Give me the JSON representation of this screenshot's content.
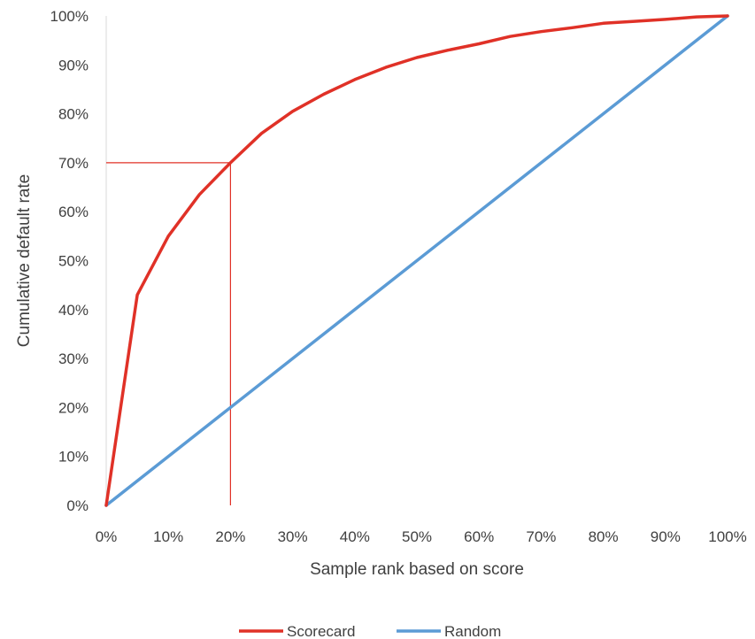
{
  "chart_data": {
    "type": "line",
    "title": "",
    "xlabel": "Sample rank based on score",
    "ylabel": "Cumulative default rate",
    "xlim": [
      0,
      100
    ],
    "ylim": [
      0,
      100
    ],
    "x_ticks": [
      "0%",
      "10%",
      "20%",
      "30%",
      "40%",
      "50%",
      "60%",
      "70%",
      "80%",
      "90%",
      "100%"
    ],
    "y_ticks": [
      "0%",
      "10%",
      "20%",
      "30%",
      "40%",
      "50%",
      "60%",
      "70%",
      "80%",
      "90%",
      "100%"
    ],
    "grid": false,
    "legend_position": "bottom",
    "series": [
      {
        "name": "Scorecard",
        "color": "#e03127",
        "x": [
          0,
          5,
          10,
          15,
          20,
          25,
          30,
          35,
          40,
          45,
          50,
          55,
          60,
          65,
          70,
          75,
          80,
          85,
          90,
          95,
          100
        ],
        "y": [
          0,
          43,
          55,
          63.5,
          70,
          76,
          80.5,
          84,
          87,
          89.5,
          91.5,
          93,
          94.3,
          95.8,
          96.8,
          97.6,
          98.5,
          98.9,
          99.3,
          99.8,
          100
        ]
      },
      {
        "name": "Random",
        "color": "#5b9bd5",
        "x": [
          0,
          100
        ],
        "y": [
          0,
          100
        ]
      }
    ],
    "reference_lines": {
      "color": "#e03127",
      "x": 20,
      "y": 70
    }
  }
}
